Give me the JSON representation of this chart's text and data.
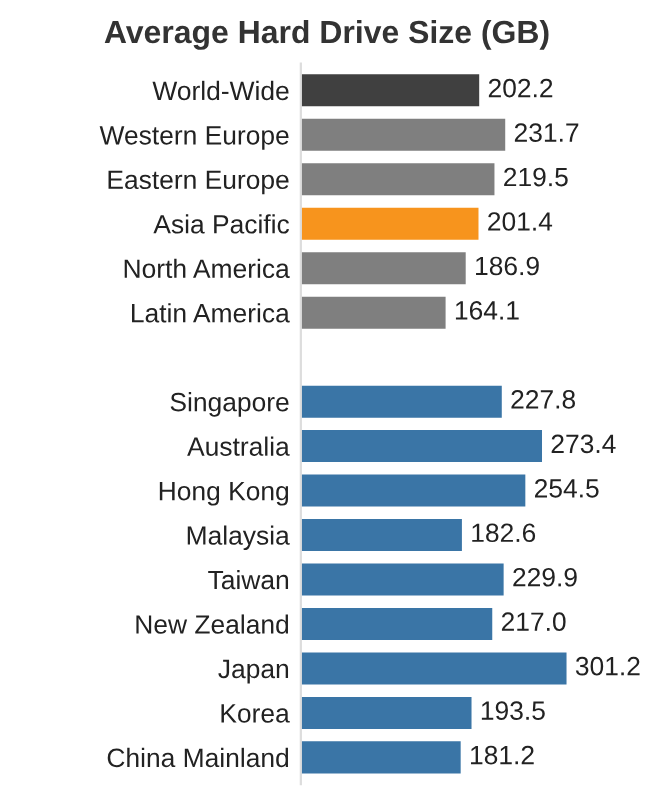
{
  "chart_data": {
    "type": "bar",
    "orientation": "horizontal",
    "title": "Average Hard Drive Size (GB)",
    "categories": [
      "World-Wide",
      "Western Europe",
      "Eastern Europe",
      "Asia Pacific",
      "North America",
      "Latin America",
      null,
      "Singapore",
      "Australia",
      "Hong Kong",
      "Malaysia",
      "Taiwan",
      "New Zealand",
      "Japan",
      "Korea",
      "China Mainland"
    ],
    "values": [
      202.2,
      231.7,
      219.5,
      201.4,
      186.9,
      164.1,
      null,
      227.8,
      273.4,
      254.5,
      182.6,
      229.9,
      217.0,
      301.2,
      193.5,
      181.2
    ],
    "value_labels": [
      "202.2",
      "231.7",
      "219.5",
      "201.4",
      "186.9",
      "164.1",
      null,
      "227.8",
      "273.4",
      "254.5",
      "182.6",
      "229.9",
      "217.0",
      "301.2",
      "193.5",
      "181.2"
    ],
    "colors": [
      "#404040",
      "#7f7f7f",
      "#7f7f7f",
      "#f7941d",
      "#7f7f7f",
      "#7f7f7f",
      null,
      "#3a75a6",
      "#3a75a6",
      "#3a75a6",
      "#3a75a6",
      "#3a75a6",
      "#3a75a6",
      "#3a75a6",
      "#3a75a6",
      "#3a75a6"
    ],
    "grid": false,
    "legend": false
  }
}
